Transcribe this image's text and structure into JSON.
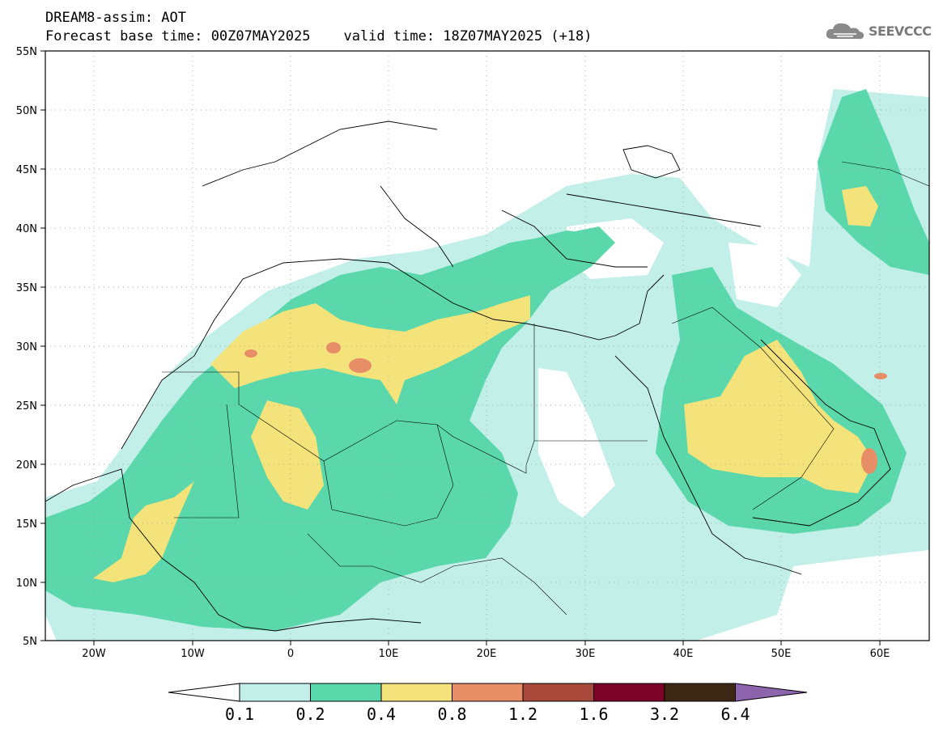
{
  "header": {
    "title": "DREAM8-assim: AOT",
    "base_time": "Forecast base time: 00Z07MAY2025",
    "valid_time": "valid time: 18Z07MAY2025 (+18)"
  },
  "logo": {
    "text": "SEEVCCC",
    "icon": "cloud-icon"
  },
  "map": {
    "lon_ticks": [
      "20W",
      "10W",
      "0",
      "10E",
      "20E",
      "30E",
      "40E",
      "50E",
      "60E"
    ],
    "lat_ticks": [
      "55N",
      "50N",
      "45N",
      "40N",
      "35N",
      "30N",
      "25N",
      "20N",
      "15N",
      "10N",
      "5N"
    ],
    "lon_range": [
      -25,
      65
    ],
    "lat_range": [
      5,
      55
    ],
    "grid": "dotted"
  },
  "colorbar": {
    "labels": [
      "0.1",
      "0.2",
      "0.4",
      "0.8",
      "1.2",
      "1.6",
      "3.2",
      "6.4"
    ],
    "colors": [
      "#ffffff",
      "#c2efe8",
      "#5ad8ab",
      "#f4e37a",
      "#e88e67",
      "#a8493c",
      "#7d0228",
      "#3d2715",
      "#8e63ad"
    ]
  }
}
